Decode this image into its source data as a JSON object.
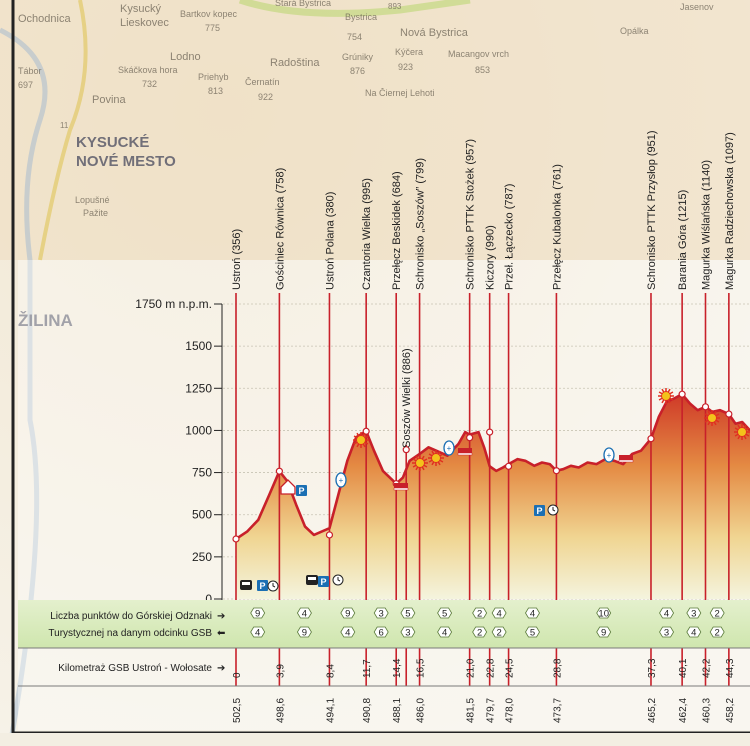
{
  "map": {
    "places": [
      {
        "name": "Ochodnica"
      },
      {
        "name": "Kysucký"
      },
      {
        "name": "Lieskovec"
      },
      {
        "name": "Bartkov kopec"
      },
      {
        "name": "775"
      },
      {
        "name": "Stará Bystrica"
      },
      {
        "name": "Bystrica"
      },
      {
        "name": "754"
      },
      {
        "name": "Nová Bystrica"
      },
      {
        "name": "Jasenov"
      },
      {
        "name": "Opálka"
      },
      {
        "name": "Lodno"
      },
      {
        "name": "Radoština"
      },
      {
        "name": "Grúniky"
      },
      {
        "name": "876"
      },
      {
        "name": "Kýčera"
      },
      {
        "name": "923"
      },
      {
        "name": "Macangov vrch"
      },
      {
        "name": "853"
      },
      {
        "name": "Tábor"
      },
      {
        "name": "697"
      },
      {
        "name": "Skáčkova hora"
      },
      {
        "name": "732"
      },
      {
        "name": "Priehyb"
      },
      {
        "name": "813"
      },
      {
        "name": "Černatín"
      },
      {
        "name": "922"
      },
      {
        "name": "Povina"
      },
      {
        "name": "Na Čiernej Lehoti"
      },
      {
        "name": "KYSUCKÉ"
      },
      {
        "name": "NOVÉ MESTO"
      },
      {
        "name": "Lopušné"
      },
      {
        "name": "Pažite"
      },
      {
        "name": "ŽILINA"
      },
      {
        "name": "11"
      },
      {
        "name": "893"
      }
    ]
  },
  "chart_data": {
    "type": "area",
    "title": "",
    "ylabel": "1750 m n.p.m.",
    "yticks": [
      "1750 m n.p.m.",
      "1500",
      "1250",
      "1000",
      "750",
      "500",
      "250",
      "0"
    ],
    "ylim": [
      0,
      1750
    ],
    "stations": [
      {
        "label": "Ustroń (356)",
        "elev": 356
      },
      {
        "label": "Gościniec Równica (758)",
        "elev": 758
      },
      {
        "label": "Ustroń Polana (380)",
        "elev": 380
      },
      {
        "label": "Czantoria Wielka (995)",
        "elev": 995
      },
      {
        "label": "Przełęcz Beskidek (684)",
        "elev": 684
      },
      {
        "label": "Schronisko „Soszów” (799)",
        "elev": 799
      },
      {
        "label": "Soszów Wielki (886)",
        "elev": 886
      },
      {
        "label": "Schronisko PTTK Stożek (957)",
        "elev": 957
      },
      {
        "label": "Kiczory (990)",
        "elev": 990
      },
      {
        "label": "Przeł. Łączecko (787)",
        "elev": 787
      },
      {
        "label": "Przełęcz Kubalonka (761)",
        "elev": 761
      },
      {
        "label": "Schronisko PTTK Przysłop (951)",
        "elev": 951
      },
      {
        "label": "Barania Góra (1215)",
        "elev": 1215
      },
      {
        "label": "Magurka Wiślańska (1140)",
        "elev": 1140
      },
      {
        "label": "Magurka Radziechowska (1097)",
        "elev": 1097
      }
    ],
    "profile_km": [
      0,
      1.0,
      2.0,
      3.0,
      3.9,
      4.6,
      5.4,
      6.2,
      7.0,
      8.4,
      9.2,
      10.0,
      10.8,
      11.7,
      12.4,
      13.2,
      14.4,
      15.0,
      15.6,
      16.5,
      17.3,
      18.0,
      19.0,
      20.0,
      20.6,
      21.0,
      21.8,
      22.3,
      22.8,
      23.4,
      24.0,
      24.5,
      25.3,
      26.0,
      26.8,
      27.5,
      28.2,
      28.8,
      29.4,
      30.1,
      30.8,
      31.6,
      32.4,
      33.2,
      34.0,
      34.8,
      35.6,
      36.4,
      37.3,
      38.0,
      38.7,
      39.4,
      40.1,
      40.8,
      41.5,
      42.2,
      42.8,
      43.5,
      44.3,
      44.9,
      45.5,
      46.2
    ],
    "profile_elev": [
      356,
      400,
      470,
      620,
      758,
      700,
      560,
      430,
      380,
      420,
      620,
      820,
      960,
      995,
      880,
      760,
      684,
      720,
      820,
      860,
      900,
      880,
      850,
      920,
      990,
      975,
      990,
      900,
      787,
      760,
      780,
      800,
      830,
      820,
      790,
      810,
      800,
      761,
      770,
      790,
      780,
      810,
      800,
      830,
      820,
      800,
      860,
      880,
      951,
      1080,
      1170,
      1190,
      1215,
      1160,
      1120,
      1140,
      1110,
      1120,
      1097,
      1040,
      1050,
      1000
    ],
    "km_labels": [
      "0",
      "3,9",
      "8,4",
      "11,7",
      "14,4",
      "16,5",
      "21,0",
      "22,8",
      "24,5",
      "28,8",
      "37,3",
      "40,1",
      "42,2",
      "44,3"
    ],
    "km_values": [
      0,
      3.9,
      8.4,
      11.7,
      14.4,
      16.5,
      21.0,
      22.8,
      24.5,
      28.8,
      37.3,
      40.1,
      42.2,
      44.3
    ],
    "rev_labels": [
      "502,5",
      "498,6",
      "494,1",
      "490,8",
      "488,1",
      "486,0",
      "481,5",
      "479,7",
      "478,0",
      "473,7",
      "465,2",
      "462,4",
      "460,3",
      "458,2"
    ],
    "points_gsb": [
      "9",
      "4",
      "9",
      "3",
      "5",
      "5",
      "2",
      "4",
      "4",
      "10",
      "4",
      "3",
      "2"
    ],
    "points_gsb_rev": [
      "4",
      "9",
      "4",
      "6",
      "3",
      "4",
      "2",
      "2",
      "5",
      "9",
      "3",
      "4",
      "2"
    ],
    "row_labels": {
      "points_to": "Liczba punktów do Górskiej Odznaki",
      "points_from": "Turystycznej na danym odcinku GSB",
      "km": "Kilometraż GSB Ustroń - Wołosate"
    },
    "colors": {
      "line": "#c8202a",
      "fill_top": "#d9472d",
      "fill_mid": "#e8b25a",
      "fill_bottom": "#f4f2d8",
      "rows": "#dfeec7",
      "badge": "#1b6fb3"
    }
  }
}
